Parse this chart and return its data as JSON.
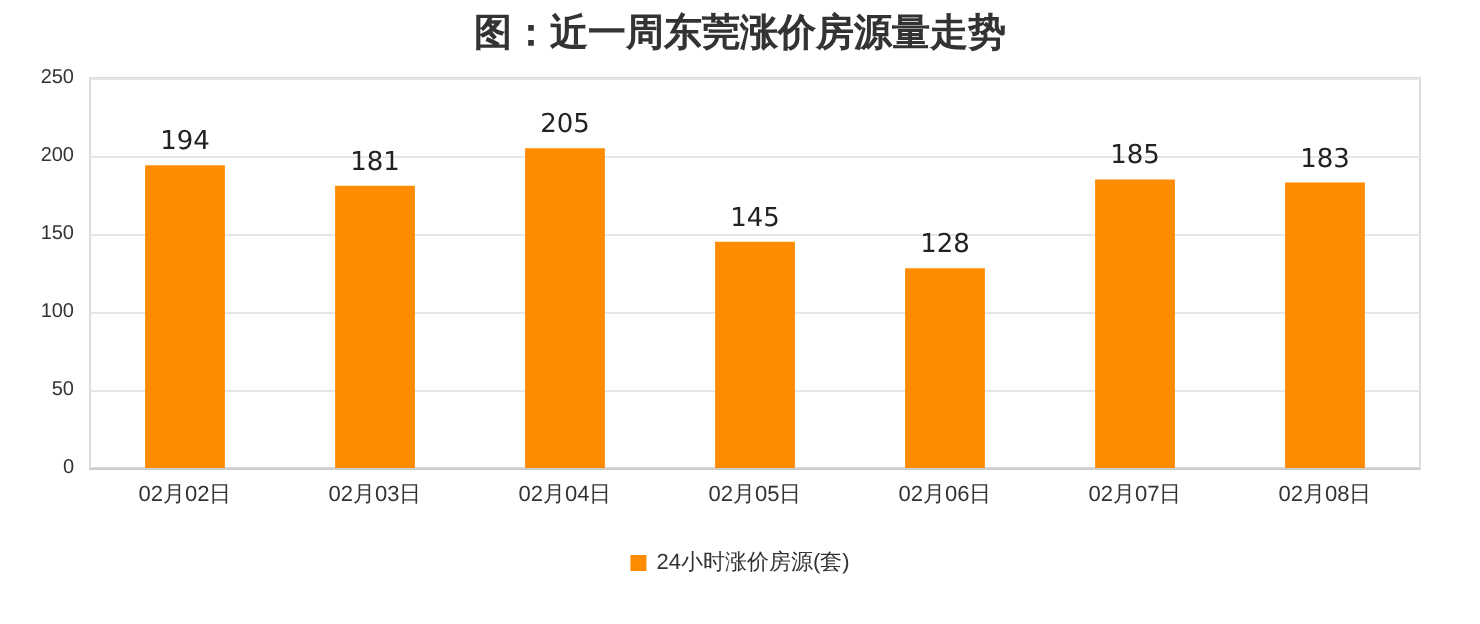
{
  "chart_data": {
    "type": "bar",
    "title": "图：近一周东莞涨价房源量走势",
    "categories": [
      "02月02日",
      "02月03日",
      "02月04日",
      "02月05日",
      "02月06日",
      "02月07日",
      "02月08日"
    ],
    "series": [
      {
        "name": "24小时涨价房源(套)",
        "color": "#ff8c00",
        "values": [
          194,
          181,
          205,
          145,
          128,
          185,
          183
        ]
      }
    ],
    "ylim": [
      0,
      250
    ],
    "yticks": [
      0,
      50,
      100,
      150,
      200,
      250
    ],
    "grid": "y",
    "legend": "bottom",
    "data_labels": true
  }
}
